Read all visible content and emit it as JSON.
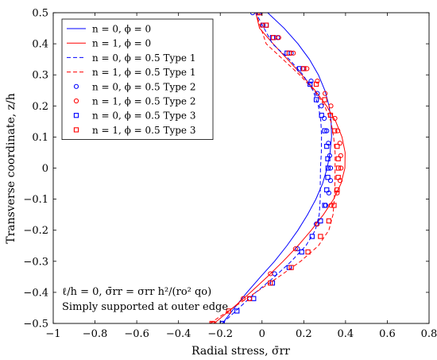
{
  "chart_data": {
    "type": "line",
    "xlabel": "Radial stress, σ̄rr",
    "ylabel": "Transverse coordinate, z/h",
    "xlim": [
      -1,
      0.8
    ],
    "ylim": [
      -0.5,
      0.5
    ],
    "xticks": [
      -1,
      -0.8,
      -0.6,
      -0.4,
      -0.2,
      0,
      0.2,
      0.4,
      0.6,
      0.8
    ],
    "yticks": [
      -0.5,
      -0.4,
      -0.3,
      -0.2,
      -0.1,
      0,
      0.1,
      0.2,
      0.3,
      0.4,
      0.5
    ],
    "xtick_labels": [
      "−1",
      "−0.8",
      "−0.6",
      "−0.4",
      "−0.2",
      "0",
      "0.2",
      "0.4",
      "0.6",
      "0.8"
    ],
    "ytick_labels": [
      "−0.5",
      "−0.4",
      "−0.3",
      "−0.2",
      "−0.1",
      "0",
      "0.1",
      "0.2",
      "0.3",
      "0.4",
      "0.5"
    ],
    "grid": false,
    "legend_position": "top-left",
    "annotations": [
      "ℓ/h = 0, σ̄rr = σrr h²/(ro² qo)",
      "Simply supported at outer edge"
    ],
    "series": [
      {
        "name": "n = 0, ϕ = 0",
        "style": "solid",
        "marker": "none",
        "color": "#0000ff",
        "x": [
          -0.19,
          -0.132,
          -0.072,
          -0.007,
          0.06,
          0.119,
          0.172,
          0.218,
          0.258,
          0.29,
          0.312,
          0.326,
          0.333,
          0.331,
          0.321,
          0.301,
          0.27,
          0.227,
          0.172,
          0.106,
          0.027,
          -0.032
        ],
        "y": [
          -0.5,
          -0.45,
          -0.4,
          -0.35,
          -0.3,
          -0.25,
          -0.2,
          -0.15,
          -0.1,
          -0.05,
          0,
          0.05,
          0.1,
          0.15,
          0.2,
          0.25,
          0.3,
          0.35,
          0.4,
          0.45,
          0.5,
          0.5
        ]
      },
      {
        "name": "n = 1, ϕ = 0",
        "style": "solid",
        "marker": "none",
        "color": "#ff0000",
        "x": [
          -0.23,
          -0.14,
          -0.055,
          0.025,
          0.101,
          0.172,
          0.236,
          0.294,
          0.343,
          0.378,
          0.397,
          0.398,
          0.383,
          0.353,
          0.309,
          0.254,
          0.19,
          0.122,
          0.053,
          -0.012,
          -0.03
        ],
        "y": [
          -0.5,
          -0.45,
          -0.4,
          -0.35,
          -0.3,
          -0.25,
          -0.2,
          -0.15,
          -0.1,
          -0.05,
          0,
          0.05,
          0.1,
          0.15,
          0.2,
          0.25,
          0.3,
          0.35,
          0.4,
          0.45,
          0.5
        ]
      },
      {
        "name": "n = 0, ϕ = 0.5 Type 1",
        "style": "dashed",
        "marker": "none",
        "color": "#0000ff",
        "x": [
          -0.19,
          -0.11,
          -0.03,
          0.06,
          0.14,
          0.21,
          0.255,
          0.274,
          0.279,
          0.279,
          0.28,
          0.284,
          0.285,
          0.282,
          0.27,
          0.244,
          0.196,
          0.13,
          0.05,
          -0.03
        ],
        "y": [
          -0.5,
          -0.45,
          -0.4,
          -0.35,
          -0.3,
          -0.25,
          -0.2,
          -0.15,
          -0.1,
          -0.05,
          0,
          0.05,
          0.1,
          0.15,
          0.2,
          0.25,
          0.3,
          0.35,
          0.4,
          0.5
        ]
      },
      {
        "name": "n = 1, ϕ = 0.5 Type 1",
        "style": "dashed",
        "marker": "none",
        "color": "#ff0000",
        "x": [
          -0.25,
          -0.14,
          -0.03,
          0.08,
          0.185,
          0.27,
          0.32,
          0.34,
          0.346,
          0.349,
          0.35,
          0.35,
          0.343,
          0.33,
          0.3,
          0.25,
          0.18,
          0.1,
          0.02,
          -0.03
        ],
        "y": [
          -0.5,
          -0.45,
          -0.4,
          -0.35,
          -0.3,
          -0.25,
          -0.2,
          -0.15,
          -0.1,
          -0.05,
          0,
          0.05,
          0.1,
          0.15,
          0.2,
          0.25,
          0.3,
          0.35,
          0.4,
          0.5
        ]
      },
      {
        "name": "n = 0, ϕ = 0.5 Type 2",
        "style": "none",
        "marker": "circle",
        "color": "#0000ff",
        "x": [
          -0.19,
          -0.06,
          0.06,
          0.17,
          0.26,
          0.305,
          0.32,
          0.328,
          0.328,
          0.324,
          0.318,
          0.31,
          0.298,
          0.284,
          0.265,
          0.235,
          0.195,
          0.14,
          0.075,
          0.005,
          -0.045
        ],
        "y": [
          -0.5,
          -0.42,
          -0.34,
          -0.26,
          -0.18,
          -0.12,
          -0.08,
          -0.04,
          0,
          0.04,
          0.08,
          0.12,
          0.16,
          0.2,
          0.24,
          0.28,
          0.32,
          0.37,
          0.42,
          0.46,
          0.5
        ]
      },
      {
        "name": "n = 1, ϕ = 0.5 Type 2",
        "style": "none",
        "marker": "circle",
        "color": "#ff0000",
        "x": [
          -0.23,
          -0.09,
          0.04,
          0.16,
          0.265,
          0.33,
          0.36,
          0.374,
          0.378,
          0.377,
          0.373,
          0.363,
          0.349,
          0.33,
          0.302,
          0.265,
          0.215,
          0.15,
          0.08,
          0.0,
          -0.02
        ],
        "y": [
          -0.5,
          -0.42,
          -0.34,
          -0.26,
          -0.18,
          -0.12,
          -0.08,
          -0.04,
          0,
          0.04,
          0.08,
          0.12,
          0.16,
          0.2,
          0.24,
          0.28,
          0.32,
          0.37,
          0.42,
          0.46,
          0.5
        ]
      },
      {
        "name": "n = 0, ϕ = 0.5 Type 3",
        "style": "none",
        "marker": "square",
        "color": "#0000ff",
        "x": [
          -0.19,
          -0.12,
          -0.04,
          0.05,
          0.13,
          0.19,
          0.24,
          0.28,
          0.3,
          0.31,
          0.315,
          0.316,
          0.315,
          0.31,
          0.3,
          0.285,
          0.26,
          0.23,
          0.18,
          0.12,
          0.05,
          0.02,
          -0.015
        ],
        "y": [
          -0.5,
          -0.46,
          -0.42,
          -0.37,
          -0.32,
          -0.27,
          -0.22,
          -0.17,
          -0.12,
          -0.07,
          -0.03,
          0,
          0.03,
          0.07,
          0.12,
          0.17,
          0.22,
          0.27,
          0.32,
          0.37,
          0.42,
          0.46,
          0.5
        ]
      },
      {
        "name": "n = 1, ϕ = 0.5 Type 3",
        "style": "none",
        "marker": "square",
        "color": "#ff0000",
        "x": [
          -0.24,
          -0.16,
          -0.06,
          0.04,
          0.14,
          0.22,
          0.28,
          0.32,
          0.345,
          0.36,
          0.365,
          0.366,
          0.365,
          0.36,
          0.348,
          0.328,
          0.3,
          0.26,
          0.2,
          0.13,
          0.055,
          0.02,
          -0.01
        ],
        "y": [
          -0.5,
          -0.46,
          -0.42,
          -0.37,
          -0.32,
          -0.27,
          -0.22,
          -0.17,
          -0.12,
          -0.07,
          -0.03,
          0,
          0.03,
          0.07,
          0.12,
          0.17,
          0.22,
          0.27,
          0.32,
          0.37,
          0.42,
          0.46,
          0.5
        ]
      }
    ]
  }
}
